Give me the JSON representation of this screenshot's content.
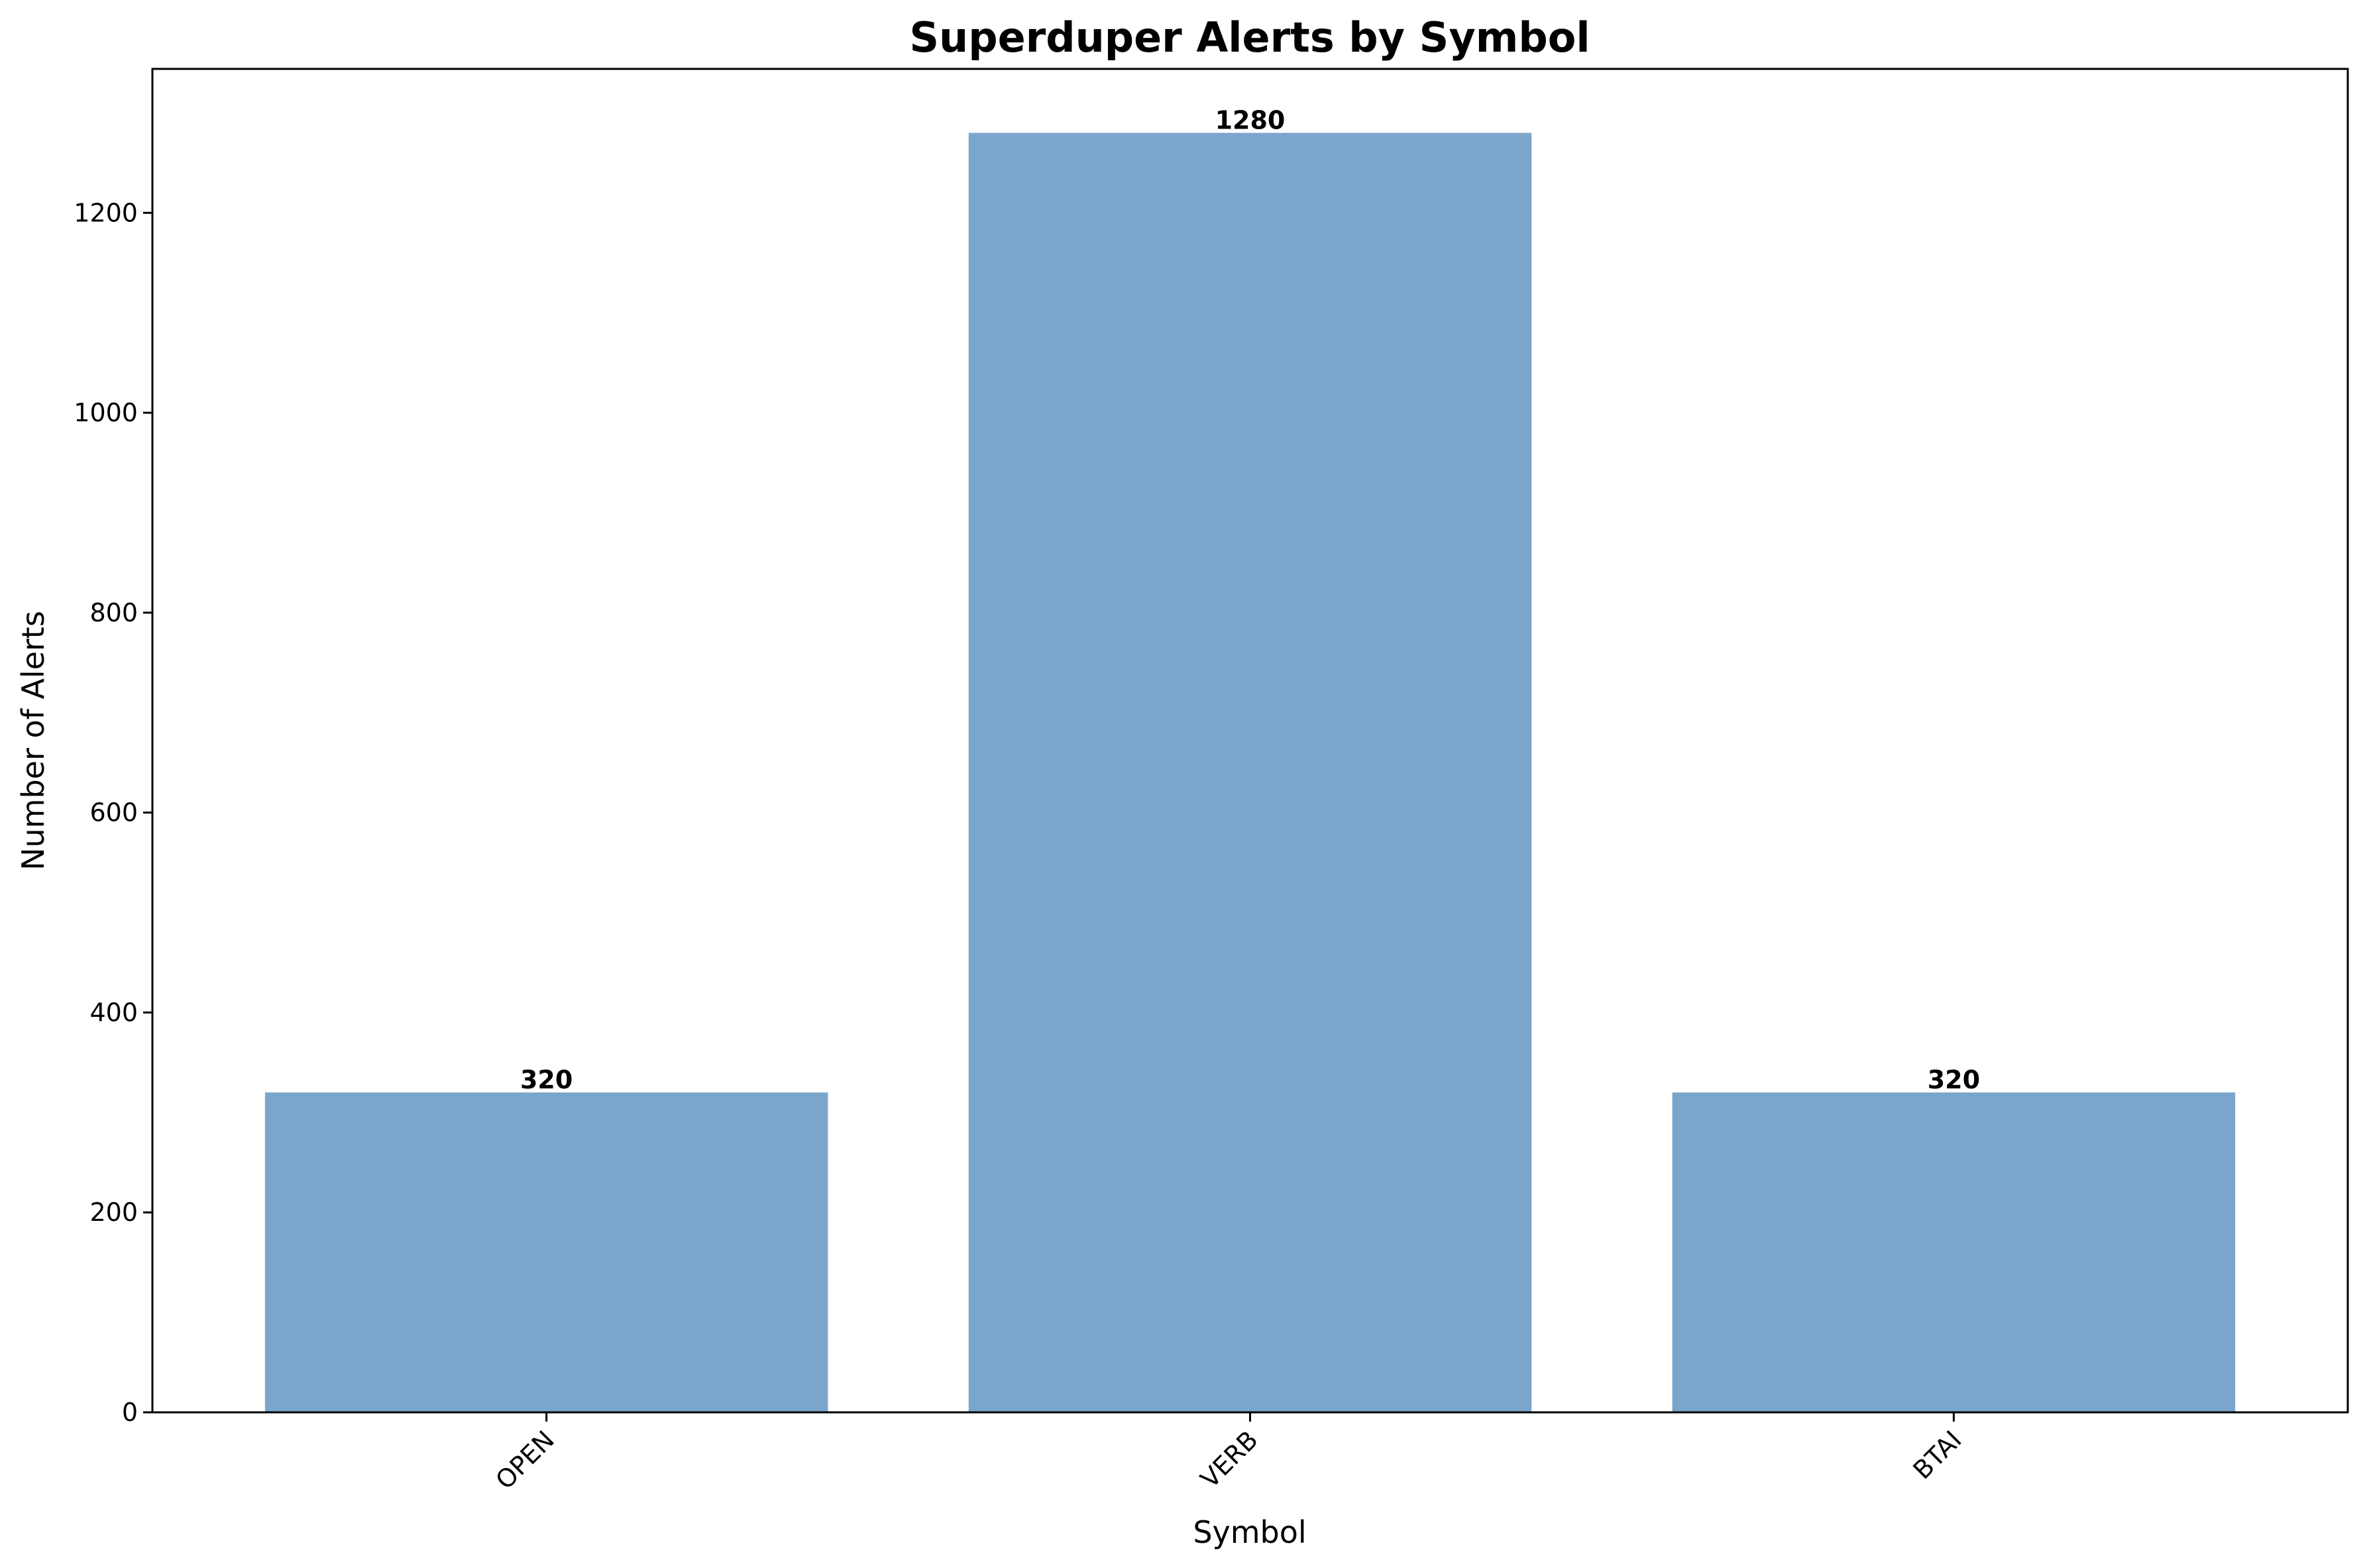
{
  "chart_data": {
    "type": "bar",
    "title": "Superduper Alerts by Symbol",
    "xlabel": "Symbol",
    "ylabel": "Number of Alerts",
    "categories": [
      "OPEN",
      "VERB",
      "BTAI"
    ],
    "values": [
      320,
      1280,
      320
    ],
    "data_labels": [
      "320",
      "1280",
      "320"
    ],
    "ylim": [
      0,
      1344
    ],
    "yticks": [
      0,
      200,
      400,
      600,
      800,
      1000,
      1200
    ],
    "ytick_labels": [
      "0",
      "200",
      "400",
      "600",
      "800",
      "1000",
      "1200"
    ],
    "xtick_rotation_deg": 45,
    "grid": false,
    "legend": "none",
    "colors": {
      "bar": "#7ba6cb",
      "text": "#000000",
      "background": "#ffffff"
    }
  }
}
